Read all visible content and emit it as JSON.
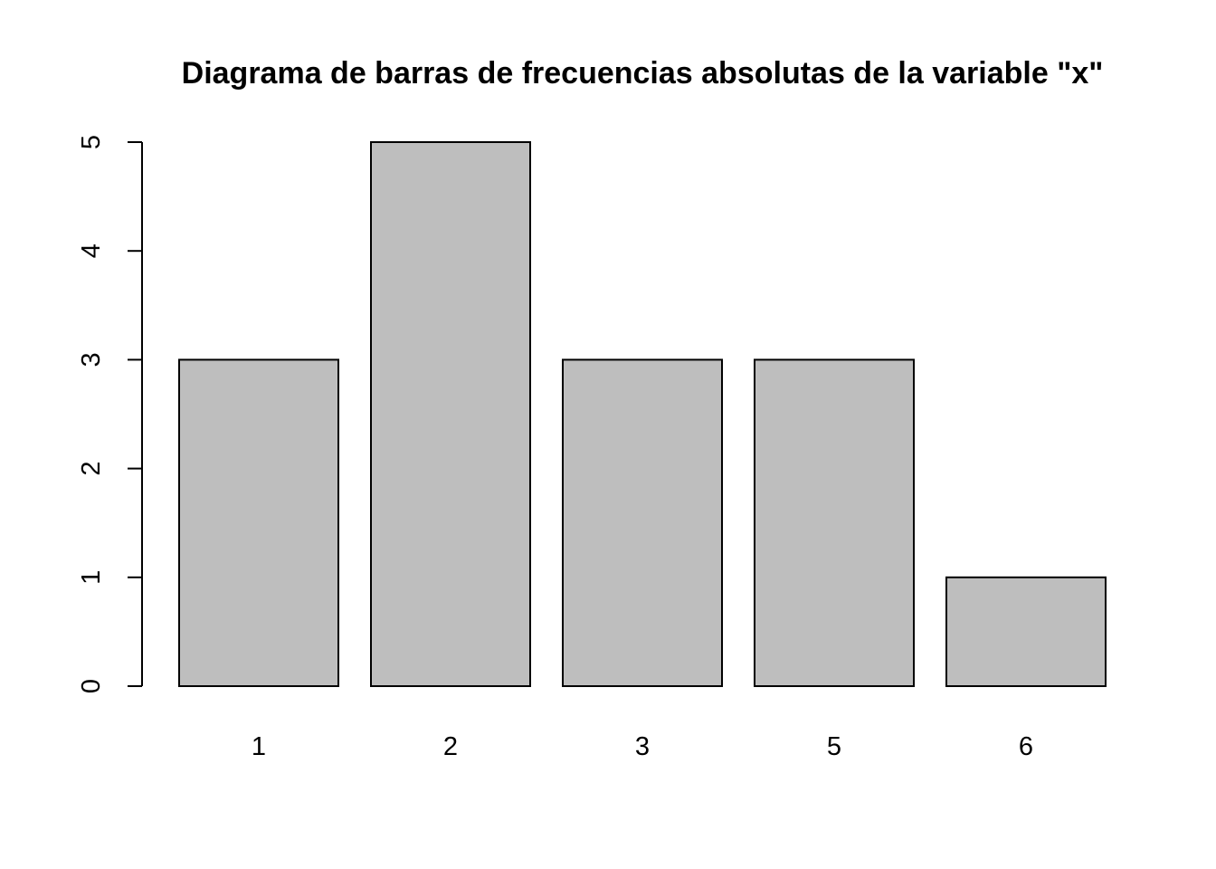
{
  "chart_data": {
    "type": "bar",
    "title": "Diagrama de barras de frecuencias absolutas de la variable \"x\"",
    "xlabel": "",
    "ylabel": "",
    "categories": [
      "1",
      "2",
      "3",
      "5",
      "6"
    ],
    "values": [
      3,
      5,
      3,
      3,
      1
    ],
    "ylim": [
      0,
      5
    ],
    "yticks": [
      0,
      1,
      2,
      3,
      4,
      5
    ],
    "ytick_labels": [
      "0",
      "1",
      "2",
      "3",
      "4",
      "5"
    ],
    "grid": false,
    "bar_color": "#bebebe",
    "border_color": "#000000",
    "background": "#ffffff"
  }
}
